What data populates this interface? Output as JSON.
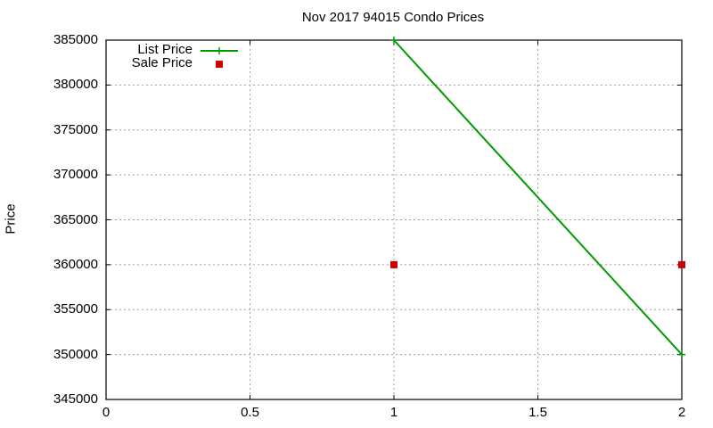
{
  "chart_data": {
    "type": "line",
    "title": "Nov 2017 94015 Condo Prices",
    "xlabel": "",
    "ylabel": "Price",
    "xlim": [
      0,
      2
    ],
    "ylim": [
      345000,
      385000
    ],
    "x_ticks": [
      "0",
      "0.5",
      "1",
      "1.5",
      "2"
    ],
    "y_ticks": [
      "345000",
      "350000",
      "355000",
      "360000",
      "365000",
      "370000",
      "375000",
      "380000",
      "385000"
    ],
    "grid": true,
    "legend_position": "top-left",
    "series": [
      {
        "name": "List Price",
        "style": "lines+points",
        "marker": "plus",
        "color": "#009900",
        "x": [
          1,
          2
        ],
        "values": [
          385000,
          350000
        ]
      },
      {
        "name": "Sale Price",
        "style": "points",
        "marker": "square",
        "color": "#cc0000",
        "x": [
          1,
          2
        ],
        "values": [
          360000,
          360000
        ]
      }
    ]
  },
  "legend": {
    "items": [
      {
        "label": "List Price"
      },
      {
        "label": "Sale Price"
      }
    ]
  }
}
